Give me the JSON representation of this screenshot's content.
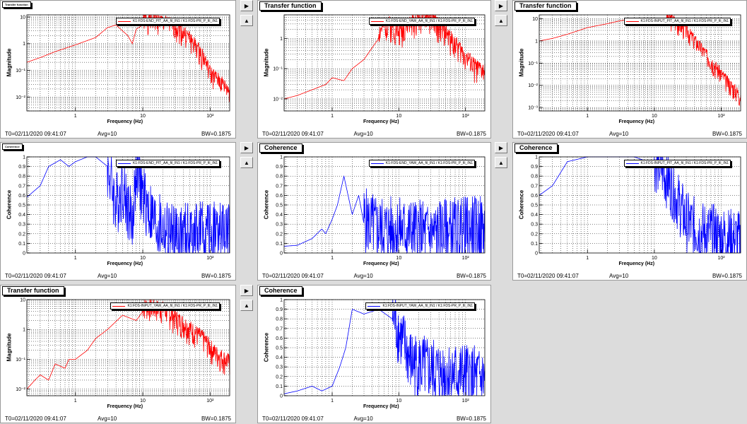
{
  "panels": [
    {
      "id": "p1",
      "kind": "tf",
      "title": "Transfer function",
      "tinyTitle": true,
      "legend": "K1:FDS-END_PIT_AA_fil_IN1 / K1:FDS-PR_P_fil_IN1",
      "ylabel": "Magnitude",
      "xlabel": "Frequency (Hz)",
      "footer": {
        "t0": "T0=02/11/2020 09:41:07",
        "avg": "Avg=10",
        "bw": "BW=0.1875"
      },
      "yticks": [
        {
          "v": 10,
          "t": "10"
        },
        {
          "v": 1,
          "t": "1"
        },
        {
          "v": 0.1,
          "t": "10⁻¹"
        },
        {
          "v": 0.01,
          "t": "10⁻²"
        }
      ],
      "xticks": [
        {
          "v": 1,
          "t": "1"
        },
        {
          "v": 10,
          "t": "10"
        },
        {
          "v": 100,
          "t": "10²"
        }
      ],
      "chart_data": {
        "type": "line",
        "xscale": "log",
        "yscale": "log",
        "xlim": [
          0.19,
          195
        ],
        "ylim": [
          0.003,
          12
        ],
        "color": "#ff0000",
        "seed": 1,
        "anchors": [
          [
            0.19,
            0.2
          ],
          [
            0.3,
            0.3
          ],
          [
            0.5,
            0.5
          ],
          [
            1,
            0.9
          ],
          [
            2,
            1.7
          ],
          [
            3,
            4
          ],
          [
            4,
            5
          ],
          [
            6,
            2
          ],
          [
            7,
            1
          ],
          [
            8,
            3.5
          ],
          [
            10,
            5
          ],
          [
            15,
            5
          ],
          [
            20,
            4
          ],
          [
            30,
            3
          ],
          [
            50,
            1
          ],
          [
            80,
            0.2
          ],
          [
            100,
            0.05
          ],
          [
            150,
            0.02
          ],
          [
            195,
            0.01
          ]
        ],
        "noiseFrom": 10,
        "noise": [
          0.4,
          3.0
        ]
      }
    },
    {
      "id": "p2",
      "kind": "tf",
      "title": "Transfer function",
      "tinyTitle": false,
      "legend": "K1:FDS-END_YAW_AA_fil_IN1 / K1:FDS-PR_P_fil_IN1",
      "ylabel": "Magnitude",
      "xlabel": "Frequency (Hz)",
      "footer": {
        "t0": "T0=02/11/2020 09:41:07",
        "avg": "Avg=10",
        "bw": "BW=0.1875"
      },
      "yticks": [
        {
          "v": 1,
          "t": "1"
        },
        {
          "v": 0.1,
          "t": "10⁻¹"
        },
        {
          "v": 0.01,
          "t": "10⁻²"
        }
      ],
      "xticks": [
        {
          "v": 1,
          "t": "1"
        },
        {
          "v": 10,
          "t": "10"
        },
        {
          "v": 100,
          "t": "10²"
        }
      ],
      "chart_data": {
        "type": "line",
        "xscale": "log",
        "yscale": "log",
        "xlim": [
          0.19,
          195
        ],
        "ylim": [
          0.004,
          6
        ],
        "color": "#ff0000",
        "seed": 2,
        "anchors": [
          [
            0.19,
            0.01
          ],
          [
            0.3,
            0.013
          ],
          [
            0.5,
            0.02
          ],
          [
            0.8,
            0.03
          ],
          [
            1,
            0.05
          ],
          [
            1.5,
            0.04
          ],
          [
            2,
            0.1
          ],
          [
            3,
            0.2
          ],
          [
            4,
            0.5
          ],
          [
            5,
            1
          ],
          [
            7,
            2
          ],
          [
            10,
            1
          ],
          [
            15,
            2
          ],
          [
            20,
            3
          ],
          [
            30,
            3
          ],
          [
            50,
            1
          ],
          [
            80,
            0.3
          ],
          [
            120,
            0.1
          ],
          [
            160,
            0.06
          ],
          [
            195,
            0.05
          ]
        ],
        "noiseFrom": 5,
        "noise": [
          0.4,
          3.0
        ]
      }
    },
    {
      "id": "p3",
      "kind": "tf",
      "title": "Transfer function",
      "tinyTitle": false,
      "legend": "K1:FDS-INPUT_PIT_AA_fil_IN1 / K1:FDS-PR_P_fil_IN1",
      "ylabel": "Magnitude",
      "xlabel": "Frequency (Hz)",
      "footer": {
        "t0": "T0=02/11/2020 09:41:07",
        "avg": "Avg=10",
        "bw": "BW=0.1875"
      },
      "yticks": [
        {
          "v": 10,
          "t": "10"
        },
        {
          "v": 1,
          "t": "1"
        },
        {
          "v": 0.1,
          "t": "10⁻¹"
        },
        {
          "v": 0.01,
          "t": "10⁻²"
        },
        {
          "v": 0.001,
          "t": "10⁻³"
        }
      ],
      "xticks": [
        {
          "v": 1,
          "t": "1"
        },
        {
          "v": 10,
          "t": "10"
        },
        {
          "v": 100,
          "t": "10²"
        }
      ],
      "chart_data": {
        "type": "line",
        "xscale": "log",
        "yscale": "log",
        "xlim": [
          0.19,
          195
        ],
        "ylim": [
          0.0007,
          15
        ],
        "color": "#ff0000",
        "seed": 3,
        "anchors": [
          [
            0.19,
            1
          ],
          [
            0.3,
            1.3
          ],
          [
            0.5,
            2
          ],
          [
            1,
            4
          ],
          [
            2,
            6
          ],
          [
            3,
            8
          ],
          [
            5,
            10
          ],
          [
            10,
            9
          ],
          [
            15,
            8
          ],
          [
            20,
            5
          ],
          [
            30,
            2
          ],
          [
            50,
            0.3
          ],
          [
            80,
            0.05
          ],
          [
            120,
            0.01
          ],
          [
            160,
            0.004
          ],
          [
            195,
            0.002
          ]
        ],
        "noiseFrom": 15,
        "noise": [
          0.4,
          3.0
        ]
      }
    },
    {
      "id": "p4",
      "kind": "coh",
      "title": "Coherence",
      "tinyTitle": true,
      "legend": "K1:FDS-END_PIT_AA_fil_IN1 / K1:FDS-PR_P_fil_IN1",
      "ylabel": "Coherence",
      "xlabel": "Frequency (Hz)",
      "footer": {
        "t0": "T0=02/11/2020 09:41:07",
        "avg": "Avg=10",
        "bw": "BW=0.1875"
      },
      "yticks": [
        {
          "v": 0,
          "t": "0"
        },
        {
          "v": 0.1,
          "t": "0.1"
        },
        {
          "v": 0.2,
          "t": "0.2"
        },
        {
          "v": 0.3,
          "t": "0.3"
        },
        {
          "v": 0.4,
          "t": "0.4"
        },
        {
          "v": 0.5,
          "t": "0.5"
        },
        {
          "v": 0.6,
          "t": "0.6"
        },
        {
          "v": 0.7,
          "t": "0.7"
        },
        {
          "v": 0.8,
          "t": "0.8"
        },
        {
          "v": 0.9,
          "t": "0.9"
        },
        {
          "v": 1,
          "t": "1"
        }
      ],
      "xticks": [
        {
          "v": 1,
          "t": "1"
        },
        {
          "v": 10,
          "t": "10"
        },
        {
          "v": 100,
          "t": "10²"
        }
      ],
      "chart_data": {
        "type": "line",
        "xscale": "log",
        "yscale": "linear",
        "xlim": [
          0.19,
          195
        ],
        "ylim": [
          0,
          1
        ],
        "color": "#0000ff",
        "seed": 4,
        "anchors": [
          [
            0.19,
            0.58
          ],
          [
            0.3,
            0.7
          ],
          [
            0.4,
            0.9
          ],
          [
            0.6,
            0.97
          ],
          [
            0.8,
            0.9
          ],
          [
            1,
            0.95
          ],
          [
            1.5,
            1
          ],
          [
            2,
            1
          ],
          [
            3,
            0.9
          ],
          [
            4,
            0.5
          ],
          [
            5,
            0.7
          ],
          [
            7,
            0.3
          ],
          [
            8,
            0.9
          ],
          [
            10,
            0.6
          ],
          [
            15,
            0.3
          ],
          [
            30,
            0.15
          ],
          [
            60,
            0.2
          ],
          [
            100,
            0.2
          ],
          [
            195,
            0.2
          ]
        ],
        "noiseFrom": 3,
        "noise": [
          -0.35,
          0.35
        ]
      }
    },
    {
      "id": "p5",
      "kind": "coh",
      "title": "Coherence",
      "tinyTitle": false,
      "legend": "K1:FDS-END_YAW_AA_fil_IN1 / K1:FDS-PR_P_fil_IN1",
      "ylabel": "Coherence",
      "xlabel": "Frequency (Hz)",
      "footer": {
        "t0": "T0=02/11/2020 09:41:07",
        "avg": "Avg=10",
        "bw": "BW=0.1875"
      },
      "yticks": [
        {
          "v": 0,
          "t": "0"
        },
        {
          "v": 0.1,
          "t": "0.1"
        },
        {
          "v": 0.2,
          "t": "0.2"
        },
        {
          "v": 0.3,
          "t": "0.3"
        },
        {
          "v": 0.4,
          "t": "0.4"
        },
        {
          "v": 0.5,
          "t": "0.5"
        },
        {
          "v": 0.6,
          "t": "0.6"
        },
        {
          "v": 0.7,
          "t": "0.7"
        },
        {
          "v": 0.8,
          "t": "0.8"
        },
        {
          "v": 0.9,
          "t": "0.9"
        },
        {
          "v": 1,
          "t": "1"
        }
      ],
      "xticks": [
        {
          "v": 1,
          "t": "1"
        },
        {
          "v": 10,
          "t": "10"
        },
        {
          "v": 100,
          "t": "10²"
        }
      ],
      "chart_data": {
        "type": "line",
        "xscale": "log",
        "yscale": "linear",
        "xlim": [
          0.19,
          195
        ],
        "ylim": [
          0,
          1
        ],
        "color": "#0000ff",
        "seed": 5,
        "anchors": [
          [
            0.19,
            0.07
          ],
          [
            0.3,
            0.08
          ],
          [
            0.5,
            0.15
          ],
          [
            0.7,
            0.25
          ],
          [
            0.8,
            0.2
          ],
          [
            1,
            0.35
          ],
          [
            1.2,
            0.5
          ],
          [
            1.5,
            0.8
          ],
          [
            2,
            0.4
          ],
          [
            2.5,
            0.6
          ],
          [
            3,
            0.3
          ],
          [
            5,
            0.2
          ],
          [
            10,
            0.2
          ],
          [
            30,
            0.15
          ],
          [
            100,
            0.2
          ],
          [
            195,
            0.2
          ]
        ],
        "noiseFrom": 3,
        "noise": [
          -0.3,
          0.4
        ]
      }
    },
    {
      "id": "p6",
      "kind": "coh",
      "title": "Coherence",
      "tinyTitle": false,
      "legend": "K1:FDS-INPUT_PIT_AA_fil_IN1 / K1:FDS-PR_P_fil_IN1",
      "ylabel": "Coherence",
      "xlabel": "Frequency (Hz)",
      "footer": {
        "t0": "T0=02/11/2020 09:41:07",
        "avg": "Avg=10",
        "bw": "BW=0.1875"
      },
      "yticks": [
        {
          "v": 0,
          "t": "0"
        },
        {
          "v": 0.1,
          "t": "0.1"
        },
        {
          "v": 0.2,
          "t": "0.2"
        },
        {
          "v": 0.3,
          "t": "0.3"
        },
        {
          "v": 0.4,
          "t": "0.4"
        },
        {
          "v": 0.5,
          "t": "0.5"
        },
        {
          "v": 0.6,
          "t": "0.6"
        },
        {
          "v": 0.7,
          "t": "0.7"
        },
        {
          "v": 0.8,
          "t": "0.8"
        },
        {
          "v": 0.9,
          "t": "0.9"
        },
        {
          "v": 1,
          "t": "1"
        }
      ],
      "xticks": [
        {
          "v": 1,
          "t": "1"
        },
        {
          "v": 10,
          "t": "10"
        },
        {
          "v": 100,
          "t": "10²"
        }
      ],
      "chart_data": {
        "type": "line",
        "xscale": "log",
        "yscale": "linear",
        "xlim": [
          0.19,
          195
        ],
        "ylim": [
          0,
          1
        ],
        "color": "#0000ff",
        "seed": 6,
        "anchors": [
          [
            0.19,
            0.6
          ],
          [
            0.3,
            0.7
          ],
          [
            0.5,
            0.95
          ],
          [
            1,
            1
          ],
          [
            2,
            1
          ],
          [
            5,
            1
          ],
          [
            8,
            0.95
          ],
          [
            12,
            0.9
          ],
          [
            20,
            0.6
          ],
          [
            30,
            0.3
          ],
          [
            50,
            0.2
          ],
          [
            100,
            0.15
          ],
          [
            195,
            0.1
          ]
        ],
        "noiseFrom": 10,
        "noise": [
          -0.3,
          0.35
        ]
      }
    },
    {
      "id": "p7",
      "kind": "tf",
      "title": "Transfer function",
      "tinyTitle": false,
      "legend": "K1:FDS-INPUT_YAW_AA_fil_IN1 / K1:FDS-PR_P_fil_IN1",
      "ylabel": "Magnitude",
      "xlabel": "Frequency (Hz)",
      "footer": {
        "t0": "T0=02/11/2020 09:41:07",
        "avg": "Avg=10",
        "bw": "BW=0.1875"
      },
      "yticks": [
        {
          "v": 10,
          "t": "10"
        },
        {
          "v": 1,
          "t": "1"
        },
        {
          "v": 0.1,
          "t": "10⁻¹"
        },
        {
          "v": 0.01,
          "t": "10⁻²"
        }
      ],
      "xticks": [
        {
          "v": 1,
          "t": "1"
        },
        {
          "v": 10,
          "t": "10"
        },
        {
          "v": 100,
          "t": "10²"
        }
      ],
      "chart_data": {
        "type": "line",
        "xscale": "log",
        "yscale": "log",
        "xlim": [
          0.19,
          195
        ],
        "ylim": [
          0.006,
          10
        ],
        "color": "#ff0000",
        "seed": 7,
        "anchors": [
          [
            0.19,
            0.01
          ],
          [
            0.25,
            0.02
          ],
          [
            0.3,
            0.03
          ],
          [
            0.4,
            0.02
          ],
          [
            0.5,
            0.07
          ],
          [
            0.7,
            0.05
          ],
          [
            0.8,
            0.1
          ],
          [
            1,
            0.1
          ],
          [
            1.5,
            0.2
          ],
          [
            2,
            0.5
          ],
          [
            3,
            1
          ],
          [
            5,
            3
          ],
          [
            8,
            2
          ],
          [
            10,
            4
          ],
          [
            20,
            3
          ],
          [
            40,
            1
          ],
          [
            80,
            0.3
          ],
          [
            120,
            0.1
          ],
          [
            195,
            0.05
          ]
        ],
        "noiseFrom": 10,
        "noise": [
          0.4,
          3.0
        ]
      }
    },
    {
      "id": "p8",
      "kind": "coh",
      "title": "Coherence",
      "tinyTitle": false,
      "legend": "K1:FDS-INPUT_YAW_AA_fil_IN1 / K1:FDS-PR_P_fil_IN1",
      "ylabel": "Coherence",
      "xlabel": "Frequency (Hz)",
      "footer": {
        "t0": "T0=02/11/2020 09:41:07",
        "avg": "Avg=10",
        "bw": "BW=0.1875"
      },
      "yticks": [
        {
          "v": 0,
          "t": "0"
        },
        {
          "v": 0.1,
          "t": "0.1"
        },
        {
          "v": 0.2,
          "t": "0.2"
        },
        {
          "v": 0.3,
          "t": "0.3"
        },
        {
          "v": 0.4,
          "t": "0.4"
        },
        {
          "v": 0.5,
          "t": "0.5"
        },
        {
          "v": 0.6,
          "t": "0.6"
        },
        {
          "v": 0.7,
          "t": "0.7"
        },
        {
          "v": 0.8,
          "t": "0.8"
        },
        {
          "v": 0.9,
          "t": "0.9"
        },
        {
          "v": 1,
          "t": "1"
        }
      ],
      "xticks": [
        {
          "v": 1,
          "t": "1"
        },
        {
          "v": 10,
          "t": "10"
        },
        {
          "v": 100,
          "t": "10²"
        }
      ],
      "chart_data": {
        "type": "line",
        "xscale": "log",
        "yscale": "linear",
        "xlim": [
          0.19,
          195
        ],
        "ylim": [
          0,
          1
        ],
        "color": "#0000ff",
        "seed": 8,
        "anchors": [
          [
            0.19,
            0.02
          ],
          [
            0.3,
            0.05
          ],
          [
            0.5,
            0.1
          ],
          [
            0.7,
            0.05
          ],
          [
            1,
            0.1
          ],
          [
            1.3,
            0.3
          ],
          [
            1.6,
            0.5
          ],
          [
            2,
            0.9
          ],
          [
            3,
            0.85
          ],
          [
            5,
            0.9
          ],
          [
            8,
            0.8
          ],
          [
            10,
            0.6
          ],
          [
            15,
            0.3
          ],
          [
            30,
            0.2
          ],
          [
            100,
            0.15
          ],
          [
            195,
            0.1
          ]
        ],
        "noiseFrom": 8,
        "noise": [
          -0.3,
          0.4
        ]
      }
    }
  ],
  "buttons": {
    "next": "▶",
    "prev": "▲"
  }
}
